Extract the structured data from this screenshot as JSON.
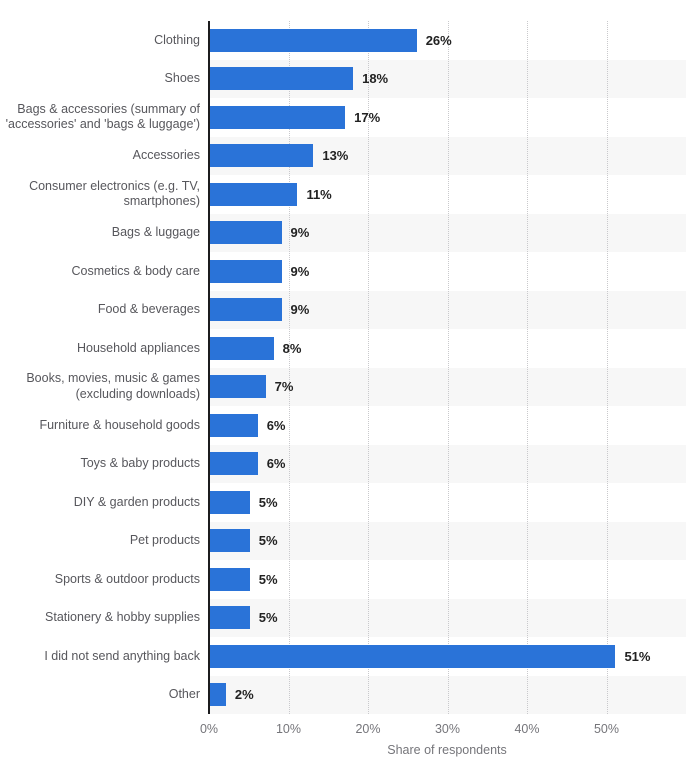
{
  "chart_data": {
    "type": "bar",
    "orientation": "horizontal",
    "title": "",
    "xlabel": "Share of respondents",
    "ylabel": "",
    "categories": [
      "Clothing",
      "Shoes",
      "Bags & accessories (summary of\n'accessories' and 'bags & luggage')",
      "Accessories",
      "Consumer electronics (e.g. TV,\nsmartphones)",
      "Bags & luggage",
      "Cosmetics & body care",
      "Food & beverages",
      "Household appliances",
      "Books, movies, music & games\n(excluding downloads)",
      "Furniture & household goods",
      "Toys & baby products",
      "DIY & garden products",
      "Pet products",
      "Sports & outdoor products",
      "Stationery & hobby supplies",
      "I did not send anything back",
      "Other"
    ],
    "values": [
      26,
      18,
      17,
      13,
      11,
      9,
      9,
      9,
      8,
      7,
      6,
      6,
      5,
      5,
      5,
      5,
      51,
      2
    ],
    "value_labels": [
      "26%",
      "18%",
      "17%",
      "13%",
      "11%",
      "9%",
      "9%",
      "9%",
      "8%",
      "7%",
      "6%",
      "6%",
      "5%",
      "5%",
      "5%",
      "5%",
      "51%",
      "2%"
    ],
    "x_ticks": [
      "0%",
      "10%",
      "20%",
      "30%",
      "40%",
      "50%"
    ],
    "x_tick_values": [
      0,
      10,
      20,
      30,
      40,
      50
    ],
    "xlim": [
      0,
      60
    ],
    "grid": "vertical-dotted",
    "legend": "none",
    "row_striping": "alternate",
    "colors": {
      "bar": "#2a73d8",
      "stripe": "#f7f7f7",
      "gridline": "#c9c9cc",
      "axis_line": "#1c1c1e",
      "category_label": "#57575c",
      "value_label": "#222222",
      "tick_label": "#75757a",
      "background": "#ffffff"
    }
  }
}
